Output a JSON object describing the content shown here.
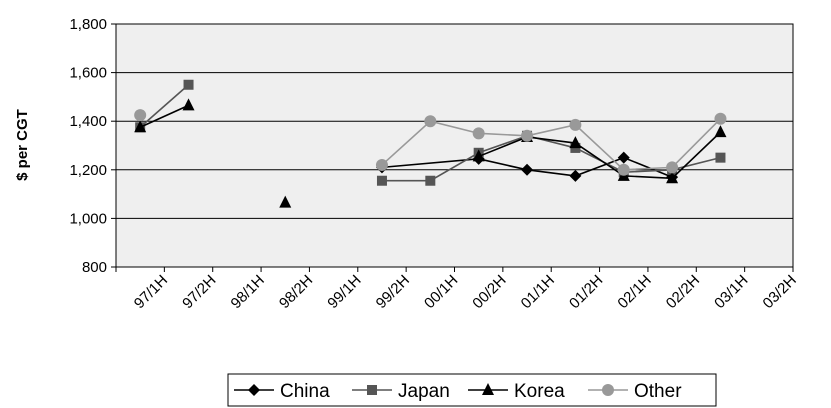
{
  "chart_data": {
    "type": "line",
    "title": "",
    "xlabel": "",
    "ylabel": "$ per CGT",
    "ylim": [
      800,
      1800
    ],
    "yticks": [
      800,
      1000,
      1200,
      1400,
      1600,
      1800
    ],
    "ytick_labels": [
      "800",
      "1,000",
      "1,200",
      "1,400",
      "1,600",
      "1,800"
    ],
    "categories": [
      "97/1H",
      "97/2H",
      "98/1H",
      "98/2H",
      "99/1H",
      "99/2H",
      "00/1H",
      "00/2H",
      "01/1H",
      "01/2H",
      "02/1H",
      "02/2H",
      "03/1H",
      "03/2H"
    ],
    "grid": "horizontal",
    "legend_position": "bottom",
    "series": [
      {
        "name": "China",
        "marker": "diamond",
        "color": "#000000",
        "points": [
          [
            5.5,
            1210
          ],
          [
            7.5,
            1245
          ],
          [
            8.5,
            1200
          ],
          [
            9.5,
            1175
          ],
          [
            10.5,
            1250
          ],
          [
            11.5,
            1170
          ]
        ]
      },
      {
        "name": "Japan",
        "marker": "square",
        "color": "#555555",
        "points": [
          [
            0.5,
            1375
          ],
          [
            1.5,
            1550
          ],
          null,
          [
            5.5,
            1155
          ],
          [
            6.5,
            1155
          ],
          [
            7.5,
            1270
          ],
          [
            8.5,
            1340
          ],
          [
            9.5,
            1290
          ],
          [
            10.5,
            1190
          ],
          [
            11.5,
            1200
          ],
          [
            12.5,
            1250
          ]
        ]
      },
      {
        "name": "Korea",
        "marker": "triangle",
        "color": "#000000",
        "points": [
          [
            0.5,
            1375
          ],
          [
            1.5,
            1465
          ],
          null,
          [
            3.5,
            1065
          ],
          null,
          [
            7.5,
            1255
          ],
          [
            8.5,
            1335
          ],
          [
            9.5,
            1310
          ],
          [
            10.5,
            1175
          ],
          [
            11.5,
            1165
          ],
          [
            12.5,
            1355
          ]
        ]
      },
      {
        "name": "Other",
        "marker": "circle",
        "color": "#999999",
        "points": [
          [
            0.5,
            1425
          ],
          null,
          [
            5.5,
            1220
          ],
          [
            6.5,
            1400
          ],
          [
            7.5,
            1350
          ],
          [
            8.5,
            1340
          ],
          [
            9.5,
            1385
          ],
          [
            10.5,
            1200
          ],
          [
            11.5,
            1210
          ],
          [
            12.5,
            1410
          ]
        ]
      }
    ]
  }
}
